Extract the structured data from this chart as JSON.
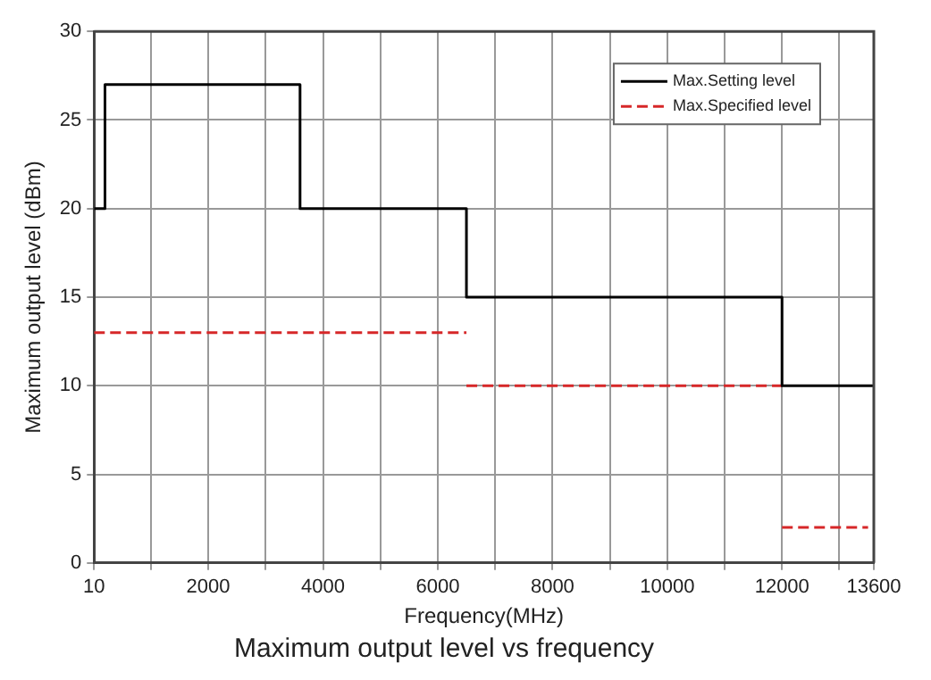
{
  "chart_data": {
    "type": "line",
    "title": "Maximum output level vs frequency",
    "xlabel": "Frequency(MHz)",
    "ylabel": "Maximum output level (dBm)",
    "series": [
      {
        "name": "Max.Setting level",
        "type": "step",
        "color": "#000000",
        "line_style": "solid",
        "x": [
          10,
          200,
          3600,
          6500,
          12000,
          13600
        ],
        "values": [
          20,
          27,
          20,
          15,
          10,
          10
        ]
      },
      {
        "name": "Max.Specified level",
        "type": "line",
        "color": "#d62728",
        "line_style": "dashed",
        "x": [
          10,
          6500,
          null,
          6500,
          12000,
          null,
          12000,
          13500
        ],
        "values": [
          13,
          13,
          null,
          10,
          10,
          null,
          2,
          2
        ]
      }
    ],
    "xlim": [
      10,
      13600
    ],
    "xticks": [
      10,
      {
        "value": 1000,
        "label": null
      },
      2000,
      {
        "value": 3000,
        "label": null
      },
      4000,
      {
        "value": 5000,
        "label": null
      },
      6000,
      {
        "value": 7000,
        "label": null
      },
      8000,
      {
        "value": 9000,
        "label": null
      },
      10000,
      {
        "value": 11000,
        "label": null
      },
      12000,
      {
        "value": 13000,
        "label": null
      },
      13600
    ],
    "ylim": [
      0,
      30
    ],
    "yticks": [
      0,
      5,
      10,
      15,
      20,
      25,
      30
    ],
    "grid": true,
    "legend": "top right",
    "marker": "none"
  }
}
